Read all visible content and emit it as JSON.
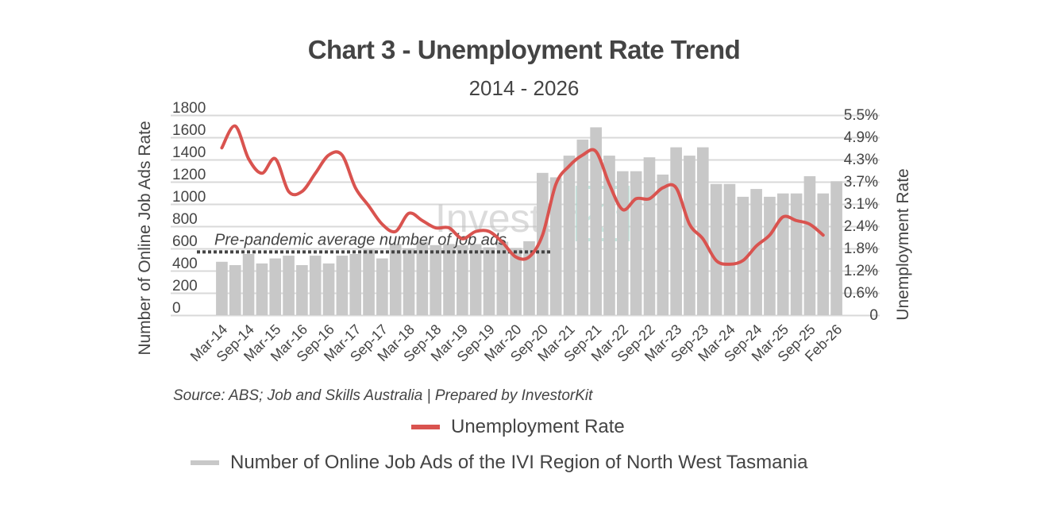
{
  "chart_data": {
    "type": "bar+line",
    "title": "Chart 3 - Unemployment Rate Trend",
    "subtitle": "2014 - 2026",
    "xlabel": "",
    "ylabel_left": "Number of Online Job Ads Rate",
    "ylabel_right": "Unemployment Rate",
    "ylim_left": [
      0,
      1800
    ],
    "ylim_right": [
      0,
      5.5
    ],
    "left_ticks": [
      "1800",
      "1600",
      "1400",
      "1200",
      "1000",
      "800",
      "600",
      "400",
      "200",
      "0"
    ],
    "right_ticks": [
      "5.5%",
      "4.9%",
      "4.3%",
      "3.7%",
      "3.1%",
      "2.4%",
      "1.8%",
      "1.2%",
      "0.6%",
      "0"
    ],
    "x_tick_labels": [
      "Mar-14",
      "Sep-14",
      "Mar-15",
      "Mar-16",
      "Sep-16",
      "Mar-17",
      "Sep-17",
      "Mar-18",
      "Sep-18",
      "Mar-19",
      "Sep-19",
      "Mar-20",
      "Sep-20",
      "Mar-21",
      "Sep-21",
      "Mar-22",
      "Sep-22",
      "Mar-23",
      "Sep-23",
      "Mar-24",
      "Sep-24",
      "Mar-25",
      "Sep-25",
      "Feb-26"
    ],
    "grid": true,
    "legend_position": "bottom",
    "series": [
      {
        "name": "Number of Online Job Ads of the IVI Region of North West Tasmania",
        "type": "bar",
        "axis": "left",
        "color": "#c8c8c8",
        "values": [
          480,
          450,
          550,
          465,
          510,
          535,
          450,
          535,
          465,
          535,
          550,
          590,
          510,
          640,
          600,
          660,
          630,
          640,
          630,
          640,
          610,
          660,
          605,
          665,
          1280,
          1240,
          1435,
          1580,
          1690,
          1435,
          1295,
          1295,
          1420,
          1265,
          1510,
          1435,
          1510,
          1180,
          1180,
          1065,
          1135,
          1065,
          1095,
          1095,
          1250,
          1095,
          1205
        ]
      },
      {
        "name": "Unemployment Rate",
        "type": "line",
        "axis": "right",
        "color": "#d9534f",
        "unit": "%",
        "points": [
          {
            "x_index": 0,
            "value": 4.6
          },
          {
            "x_index": 1,
            "value": 5.2
          },
          {
            "x_index": 2,
            "value": 4.3
          },
          {
            "x_index": 3,
            "value": 3.9
          },
          {
            "x_index": 4,
            "value": 4.3
          },
          {
            "x_index": 5,
            "value": 3.4
          },
          {
            "x_index": 6,
            "value": 3.4
          },
          {
            "x_index": 7,
            "value": 3.9
          },
          {
            "x_index": 8,
            "value": 4.4
          },
          {
            "x_index": 9,
            "value": 4.4
          },
          {
            "x_index": 10,
            "value": 3.5
          },
          {
            "x_index": 11,
            "value": 3.0
          },
          {
            "x_index": 12,
            "value": 2.5
          },
          {
            "x_index": 13,
            "value": 2.3
          },
          {
            "x_index": 14,
            "value": 2.8
          },
          {
            "x_index": 15,
            "value": 2.6
          },
          {
            "x_index": 16,
            "value": 2.4
          },
          {
            "x_index": 17,
            "value": 2.4
          },
          {
            "x_index": 18,
            "value": 2.1
          },
          {
            "x_index": 19,
            "value": 2.3
          },
          {
            "x_index": 20,
            "value": 2.3
          },
          {
            "x_index": 21,
            "value": 2.0
          },
          {
            "x_index": 22,
            "value": 1.6
          },
          {
            "x_index": 23,
            "value": 1.6
          },
          {
            "x_index": 24,
            "value": 2.2
          },
          {
            "x_index": 25,
            "value": 3.6
          },
          {
            "x_index": 26,
            "value": 4.1
          },
          {
            "x_index": 27,
            "value": 4.4
          },
          {
            "x_index": 28,
            "value": 4.5
          },
          {
            "x_index": 29,
            "value": 3.6
          },
          {
            "x_index": 30,
            "value": 2.9
          },
          {
            "x_index": 31,
            "value": 3.2
          },
          {
            "x_index": 32,
            "value": 3.2
          },
          {
            "x_index": 33,
            "value": 3.5
          },
          {
            "x_index": 34,
            "value": 3.5
          },
          {
            "x_index": 35,
            "value": 2.5
          },
          {
            "x_index": 36,
            "value": 2.1
          },
          {
            "x_index": 37,
            "value": 1.5
          },
          {
            "x_index": 38,
            "value": 1.4
          },
          {
            "x_index": 39,
            "value": 1.5
          },
          {
            "x_index": 40,
            "value": 1.9
          },
          {
            "x_index": 41,
            "value": 2.2
          },
          {
            "x_index": 42,
            "value": 2.7
          },
          {
            "x_index": 43,
            "value": 2.6
          },
          {
            "x_index": 44,
            "value": 2.5
          },
          {
            "x_index": 45,
            "value": 2.2
          }
        ]
      }
    ],
    "annotations": [
      {
        "text": "Pre-pandemic average number of job ads",
        "type": "dotted-reference-line",
        "axis": "left",
        "value": 590,
        "x_start_index": 0,
        "x_end_index": 25
      }
    ],
    "watermark": "InvestorKit"
  },
  "header": {
    "title": "Chart 3 - Unemployment Rate Trend",
    "subtitle": "2014 - 2026"
  },
  "axes": {
    "left_title": "Number of Online Job Ads Rate",
    "right_title": "Unemployment Rate"
  },
  "annotation_label": "Pre-pandemic average number of job ads",
  "watermark": {
    "part1": "Investor",
    "part2": "Kit"
  },
  "source": "Source: ABS; Job and Skills Australia | Prepared by InvestorKit",
  "legend": {
    "line_label": "Unemployment Rate",
    "bar_label": "Number of Online Job Ads of the IVI Region of North West Tasmania",
    "line_color": "#d9534f",
    "bar_color": "#c8c8c8"
  }
}
